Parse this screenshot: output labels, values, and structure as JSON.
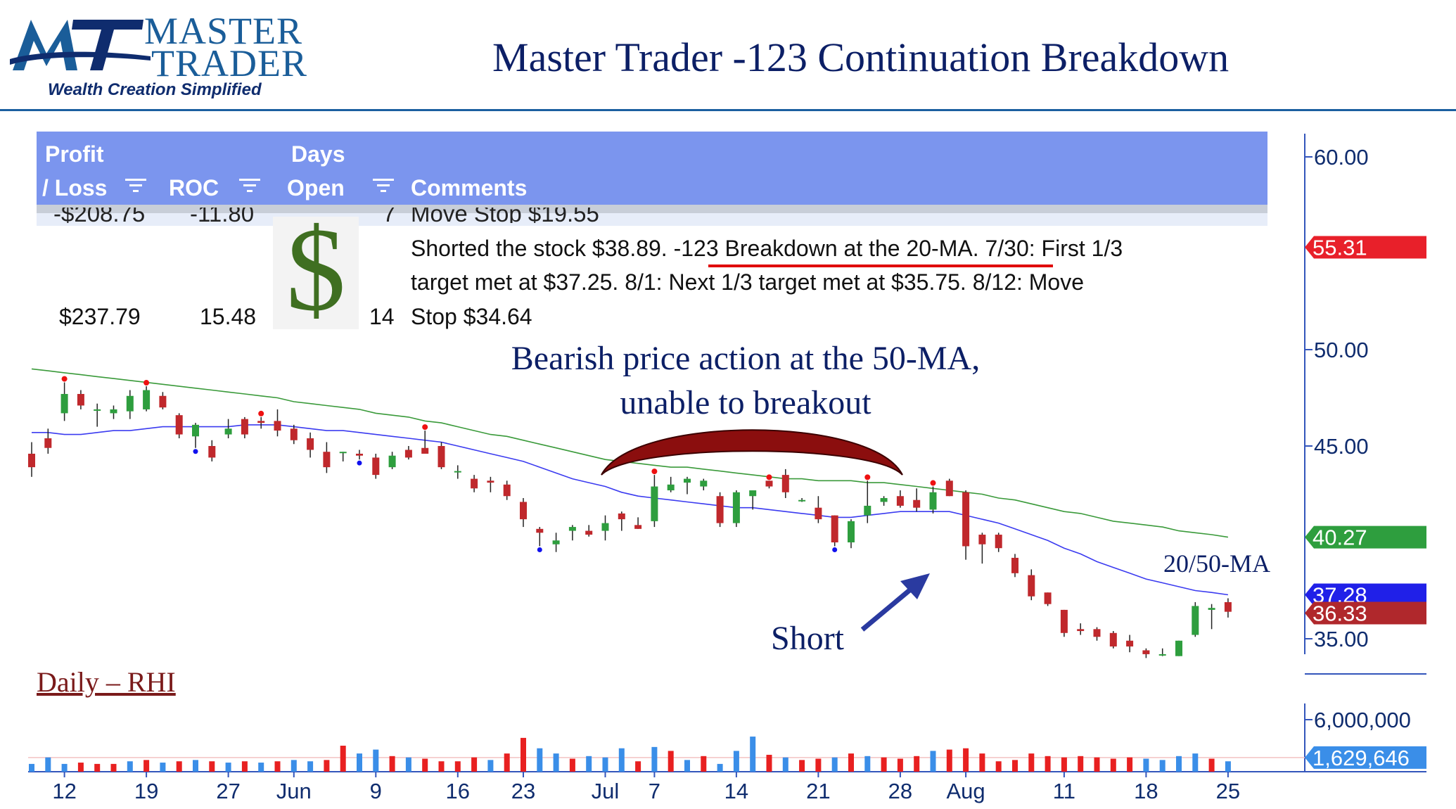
{
  "logo": {
    "line1": "MASTER",
    "line2": "TRADER",
    "tagline": "Wealth Creation Simplified",
    "mark": "MT"
  },
  "title": "Master Trader -123 Continuation Breakdown",
  "table": {
    "headers": {
      "profit_line1": "Profit",
      "profit_line2": "/ Loss",
      "roc": "ROC",
      "days_line1": "Days",
      "days_line2": "Open",
      "comments": "Comments"
    },
    "cut_row": {
      "profit": "-$208.75",
      "roc": "-11.80",
      "days": "7",
      "comment": "Move Stop $19.55"
    },
    "row": {
      "profit": "$237.79",
      "roc": "15.48",
      "days": "14",
      "symbol": "$",
      "comment_line1_a": "Shorted the stock $38.89. ",
      "comment_line1_b": "-123 Breakdown at the 20-MA",
      "comment_line1_c": ".   7/30:  First 1/3",
      "comment_line2": "target met at $37.25. 8/1:  Next 1/3 target met at $35.75.      8/12:  Move",
      "comment_line3": "Stop $34.64"
    }
  },
  "annotations": {
    "bearish": "Bearish price action at the 50-MA, unable to breakout",
    "short": "Short",
    "ma": "20/50-MA",
    "daily": "Daily – RHI"
  },
  "colors": {
    "up": "#2e9e3e",
    "down": "#c0282c",
    "ma20": "#3b3bf0",
    "ma50": "#3a9a3a",
    "vol_up": "#3a8ee8",
    "vol_down": "#e82020",
    "arc": "#8b0e0e",
    "title": "#0c1f66"
  },
  "chart_data": {
    "type": "candlestick",
    "y_axis": {
      "ticks": [
        "60.00",
        "50.00",
        "45.00",
        "35.00"
      ],
      "range": [
        33.5,
        61
      ]
    },
    "price_tags": [
      {
        "label": "55.31",
        "value": 55.31,
        "color": "#e8202a"
      },
      {
        "label": "40.27",
        "value": 40.27,
        "color": "#2e9e3e"
      },
      {
        "label": "37.28",
        "value": 37.28,
        "color": "#2020e8"
      },
      {
        "label": "36.33",
        "value": 36.33,
        "color": "#b0282c"
      }
    ],
    "volume_axis": {
      "ticks": [
        "6,000,000"
      ],
      "range": [
        0,
        6000000
      ]
    },
    "volume_tag": {
      "label": "1,629,646",
      "value": 1629646
    },
    "x_labels": [
      {
        "label": "12",
        "i": 2
      },
      {
        "label": "19",
        "i": 7
      },
      {
        "label": "27",
        "i": 12
      },
      {
        "label": "Jun",
        "i": 16
      },
      {
        "label": "9",
        "i": 21
      },
      {
        "label": "16",
        "i": 26
      },
      {
        "label": "23",
        "i": 30
      },
      {
        "label": "Jul",
        "i": 35
      },
      {
        "label": "7",
        "i": 38
      },
      {
        "label": "14",
        "i": 43
      },
      {
        "label": "21",
        "i": 48
      },
      {
        "label": "28",
        "i": 53
      },
      {
        "label": "Aug",
        "i": 57
      },
      {
        "label": "11",
        "i": 63
      },
      {
        "label": "18",
        "i": 68
      },
      {
        "label": "25",
        "i": 73
      }
    ],
    "candles": [
      [
        44.6,
        45.2,
        43.4,
        43.9
      ],
      [
        45.4,
        45.9,
        44.6,
        44.9
      ],
      [
        46.7,
        48.3,
        46.3,
        47.7
      ],
      [
        47.7,
        47.9,
        46.9,
        47.1
      ],
      [
        46.9,
        47.2,
        46.0,
        46.9
      ],
      [
        46.7,
        47.1,
        46.4,
        46.9
      ],
      [
        46.8,
        47.9,
        46.4,
        47.6
      ],
      [
        46.9,
        48.1,
        46.8,
        47.9
      ],
      [
        47.6,
        47.8,
        46.9,
        47.0
      ],
      [
        46.6,
        46.7,
        45.4,
        45.6
      ],
      [
        45.5,
        46.2,
        44.9,
        46.1
      ],
      [
        45.0,
        45.3,
        44.2,
        44.4
      ],
      [
        45.6,
        46.4,
        45.4,
        45.9
      ],
      [
        46.4,
        46.5,
        45.4,
        45.6
      ],
      [
        46.3,
        46.5,
        45.9,
        46.2
      ],
      [
        46.3,
        46.9,
        45.5,
        45.8
      ],
      [
        45.9,
        46.1,
        45.1,
        45.3
      ],
      [
        45.4,
        45.7,
        44.4,
        44.8
      ],
      [
        44.7,
        45.2,
        43.6,
        43.9
      ],
      [
        44.7,
        44.7,
        44.2,
        44.7
      ],
      [
        44.6,
        44.8,
        44.3,
        44.5
      ],
      [
        44.4,
        44.6,
        43.3,
        43.5
      ],
      [
        43.9,
        44.7,
        43.8,
        44.5
      ],
      [
        44.8,
        45.0,
        44.3,
        44.4
      ],
      [
        44.9,
        45.8,
        44.7,
        44.6
      ],
      [
        45.0,
        45.2,
        43.8,
        43.9
      ],
      [
        43.7,
        44.0,
        43.3,
        43.7
      ],
      [
        43.3,
        43.5,
        42.6,
        42.8
      ],
      [
        43.2,
        43.4,
        42.6,
        43.1
      ],
      [
        43.0,
        43.2,
        42.2,
        42.4
      ],
      [
        42.1,
        42.3,
        40.8,
        41.2
      ],
      [
        40.7,
        40.8,
        39.8,
        40.5
      ],
      [
        39.9,
        40.5,
        39.5,
        40.1
      ],
      [
        40.6,
        40.9,
        40.1,
        40.8
      ],
      [
        40.6,
        40.9,
        40.3,
        40.4
      ],
      [
        40.6,
        41.4,
        40.1,
        41.0
      ],
      [
        41.5,
        41.6,
        40.6,
        41.2
      ],
      [
        40.9,
        41.3,
        40.7,
        40.7
      ],
      [
        41.1,
        43.5,
        40.8,
        42.9
      ],
      [
        42.7,
        43.4,
        42.6,
        43.0
      ],
      [
        43.1,
        43.4,
        42.5,
        43.3
      ],
      [
        42.9,
        43.3,
        42.7,
        43.2
      ],
      [
        42.4,
        42.6,
        40.8,
        41.0
      ],
      [
        41.0,
        42.7,
        40.8,
        42.6
      ],
      [
        42.4,
        42.7,
        41.7,
        42.7
      ],
      [
        43.2,
        43.2,
        42.8,
        42.9
      ],
      [
        43.5,
        43.8,
        42.3,
        42.6
      ],
      [
        42.2,
        42.3,
        42.1,
        42.2
      ],
      [
        41.8,
        42.4,
        41.0,
        41.2
      ],
      [
        41.4,
        41.4,
        39.8,
        40.0
      ],
      [
        40.0,
        41.2,
        39.7,
        41.1
      ],
      [
        41.4,
        43.2,
        41.0,
        41.9
      ],
      [
        42.1,
        42.4,
        41.9,
        42.3
      ],
      [
        42.4,
        42.7,
        41.8,
        41.9
      ],
      [
        42.2,
        42.8,
        41.6,
        41.8
      ],
      [
        41.7,
        42.9,
        41.5,
        42.6
      ],
      [
        43.2,
        43.3,
        42.4,
        42.4
      ],
      [
        42.6,
        42.7,
        39.1,
        39.8
      ],
      [
        40.4,
        40.5,
        38.9,
        39.9
      ],
      [
        40.4,
        40.5,
        39.5,
        39.7
      ],
      [
        39.2,
        39.4,
        38.2,
        38.4
      ],
      [
        38.3,
        38.6,
        37.0,
        37.2
      ],
      [
        37.4,
        37.4,
        36.7,
        36.8
      ],
      [
        36.5,
        36.5,
        35.1,
        35.3
      ],
      [
        35.5,
        35.8,
        35.2,
        35.4
      ],
      [
        35.5,
        35.6,
        34.9,
        35.1
      ],
      [
        35.3,
        35.4,
        34.5,
        34.6
      ],
      [
        34.9,
        35.2,
        34.3,
        34.6
      ],
      [
        34.4,
        34.5,
        34.0,
        34.2
      ],
      [
        34.2,
        34.5,
        34.1,
        34.2
      ],
      [
        34.1,
        34.9,
        34.1,
        34.9
      ],
      [
        35.2,
        36.9,
        35.1,
        36.7
      ],
      [
        36.5,
        36.8,
        35.5,
        36.6
      ],
      [
        36.9,
        37.1,
        36.1,
        36.4
      ]
    ],
    "ma20": [
      45.7,
      45.7,
      45.6,
      45.6,
      45.7,
      45.8,
      45.8,
      45.9,
      46.0,
      46.0,
      46.0,
      46.0,
      46.0,
      46.1,
      46.1,
      46.1,
      46.0,
      45.9,
      45.8,
      45.8,
      45.7,
      45.6,
      45.5,
      45.4,
      45.3,
      45.2,
      45.0,
      44.8,
      44.6,
      44.4,
      44.2,
      43.9,
      43.6,
      43.3,
      43.1,
      42.9,
      42.6,
      42.4,
      42.3,
      42.2,
      42.1,
      42.0,
      41.9,
      41.8,
      41.8,
      41.7,
      41.6,
      41.5,
      41.4,
      41.3,
      41.3,
      41.4,
      41.5,
      41.6,
      41.6,
      41.6,
      41.6,
      41.4,
      41.2,
      41.0,
      40.7,
      40.4,
      40.1,
      39.7,
      39.4,
      39.0,
      38.7,
      38.4,
      38.1,
      37.9,
      37.7,
      37.5,
      37.4,
      37.28
    ],
    "ma50": [
      49.0,
      48.9,
      48.8,
      48.7,
      48.6,
      48.5,
      48.4,
      48.3,
      48.2,
      48.1,
      48.0,
      47.9,
      47.8,
      47.7,
      47.6,
      47.5,
      47.3,
      47.2,
      47.1,
      47.0,
      46.9,
      46.7,
      46.6,
      46.5,
      46.3,
      46.2,
      46.0,
      45.8,
      45.6,
      45.5,
      45.3,
      45.1,
      44.9,
      44.7,
      44.5,
      44.3,
      44.2,
      44.1,
      44.0,
      43.9,
      43.9,
      43.8,
      43.7,
      43.6,
      43.5,
      43.4,
      43.3,
      43.3,
      43.2,
      43.2,
      43.2,
      43.1,
      43.1,
      43.0,
      42.9,
      42.8,
      42.7,
      42.6,
      42.5,
      42.3,
      42.2,
      42.0,
      41.8,
      41.6,
      41.5,
      41.3,
      41.1,
      41.0,
      40.9,
      40.8,
      40.6,
      40.5,
      40.4,
      40.27
    ],
    "pivot_high_markers": [
      2,
      7,
      14,
      24,
      38,
      45,
      51,
      55
    ],
    "pivot_low_markers": [
      10,
      20,
      31,
      49
    ],
    "volume": [
      0.3,
      0.55,
      0.3,
      0.35,
      0.3,
      0.3,
      0.4,
      0.45,
      0.35,
      0.4,
      0.45,
      0.4,
      0.35,
      0.4,
      0.35,
      0.4,
      0.45,
      0.4,
      0.45,
      1.0,
      0.7,
      0.85,
      0.6,
      0.55,
      0.5,
      0.4,
      0.4,
      0.55,
      0.45,
      0.7,
      1.3,
      0.9,
      0.7,
      0.5,
      0.6,
      0.55,
      0.9,
      0.4,
      0.95,
      0.8,
      0.45,
      0.6,
      0.3,
      0.8,
      1.35,
      0.65,
      0.55,
      0.45,
      0.5,
      0.55,
      0.7,
      0.6,
      0.55,
      0.5,
      0.6,
      0.8,
      0.85,
      0.9,
      0.7,
      0.4,
      0.45,
      0.7,
      0.6,
      0.55,
      0.6,
      0.55,
      0.5,
      0.55,
      0.5,
      0.45,
      0.6,
      0.7,
      0.5,
      0.4
    ],
    "volume_up": [
      true,
      true,
      true,
      false,
      false,
      false,
      true,
      false,
      true,
      false,
      true,
      false,
      true,
      false,
      true,
      false,
      true,
      true,
      false,
      false,
      true,
      true,
      false,
      true,
      false,
      false,
      false,
      false,
      true,
      false,
      false,
      true,
      true,
      false,
      true,
      true,
      true,
      false,
      true,
      false,
      true,
      false,
      true,
      true,
      true,
      false,
      true,
      false,
      false,
      true,
      false,
      true,
      false,
      false,
      false,
      true,
      false,
      false,
      false,
      false,
      false,
      false,
      false,
      false,
      false,
      false,
      false,
      false,
      true,
      true,
      true,
      true,
      false,
      true
    ]
  }
}
